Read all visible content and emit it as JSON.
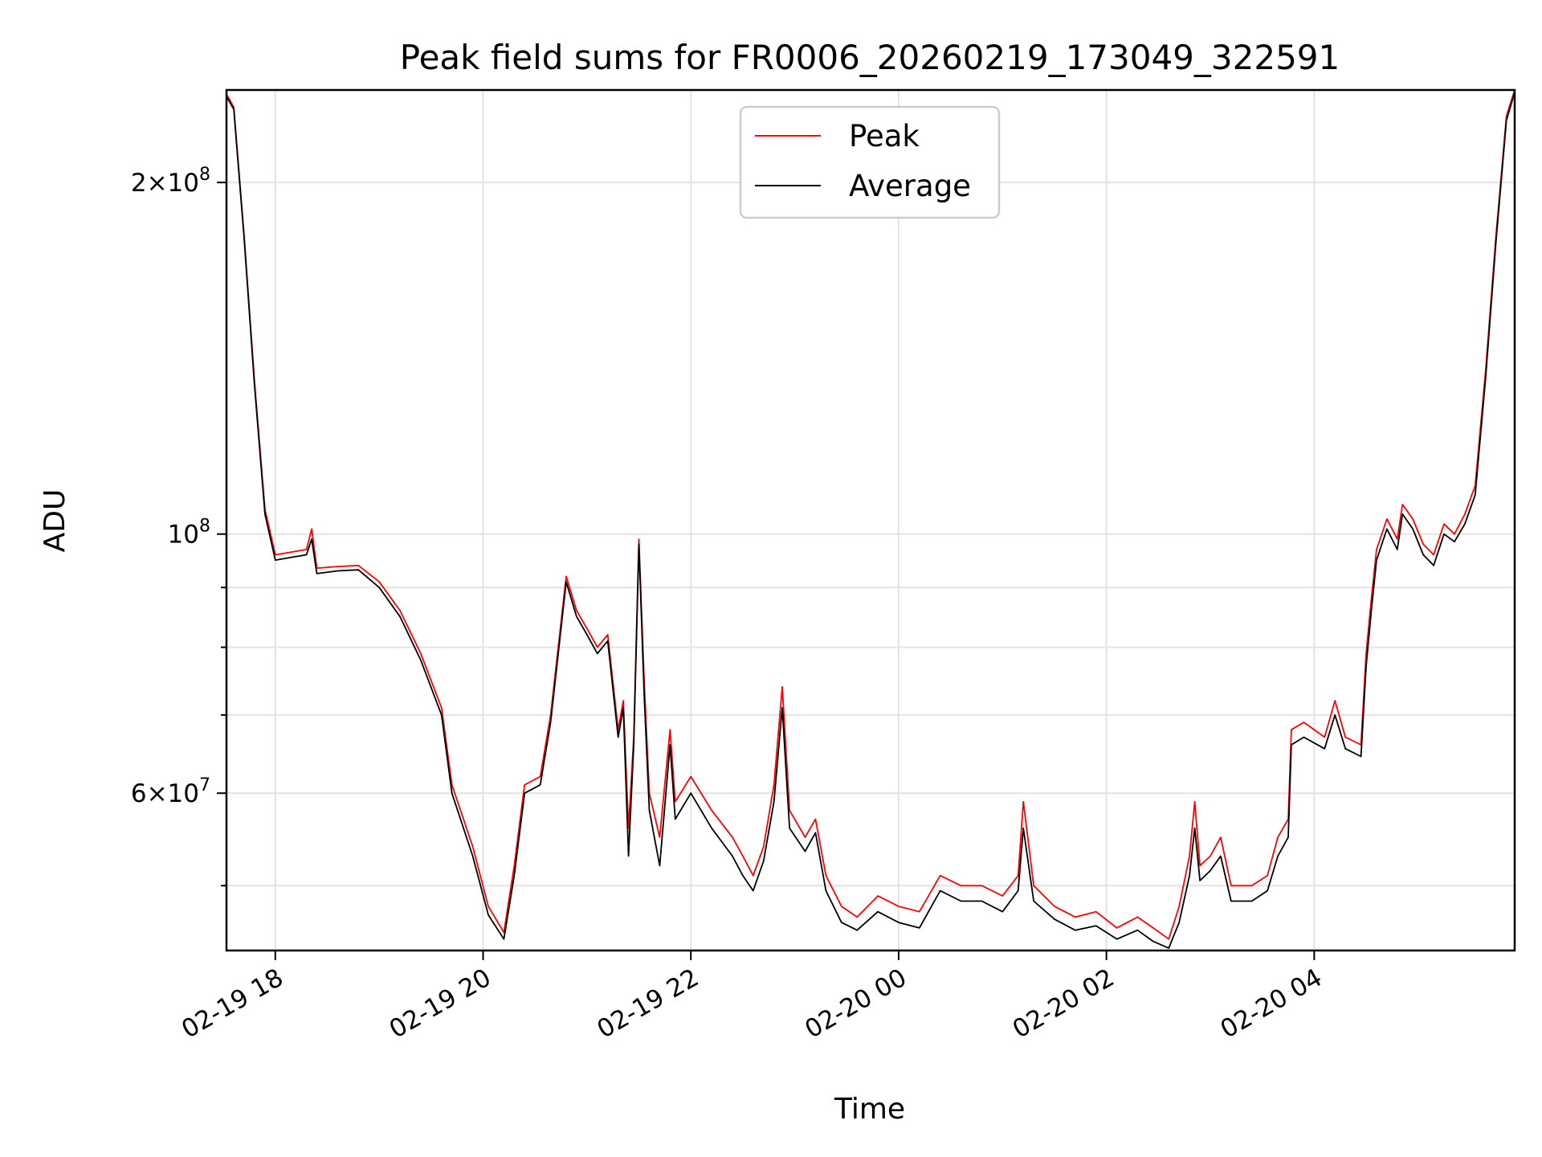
{
  "chart_data": {
    "type": "line",
    "title": "Peak field sums for FR0006_20260219_173049_322591",
    "xlabel": "Time",
    "ylabel": "ADU",
    "yscale": "log",
    "grid": true,
    "legend_position": "top-center",
    "xlim": [
      17.53,
      29.93
    ],
    "ylim": [
      44000000,
      240000000
    ],
    "x_ticks": [
      {
        "value": 18,
        "label": "02-19 18"
      },
      {
        "value": 20,
        "label": "02-19 20"
      },
      {
        "value": 22,
        "label": "02-19 22"
      },
      {
        "value": 24,
        "label": "02-20 00"
      },
      {
        "value": 26,
        "label": "02-20 02"
      },
      {
        "value": 28,
        "label": "02-20 04"
      }
    ],
    "y_ticks_major": [
      {
        "value": 200000000,
        "base": "2×10",
        "exp": "8"
      },
      {
        "value": 100000000,
        "base": "10",
        "exp": "8"
      },
      {
        "value": 60000000,
        "base": "6×10",
        "exp": "7"
      }
    ],
    "y_ticks_minor": [
      50000000,
      70000000,
      80000000,
      90000000
    ],
    "colors": {
      "peak": "#ff0000",
      "average": "#000000"
    },
    "series": [
      {
        "name": "Peak",
        "color": "#ff0000",
        "points": [
          [
            17.53,
            238000000
          ],
          [
            17.6,
            232000000
          ],
          [
            17.7,
            180000000
          ],
          [
            17.8,
            135000000
          ],
          [
            17.9,
            105000000
          ],
          [
            18.0,
            96000000
          ],
          [
            18.15,
            96500000
          ],
          [
            18.3,
            97000000
          ],
          [
            18.35,
            101000000
          ],
          [
            18.4,
            93500000
          ],
          [
            18.6,
            93800000
          ],
          [
            18.8,
            94000000
          ],
          [
            19.0,
            91000000
          ],
          [
            19.2,
            86000000
          ],
          [
            19.4,
            79000000
          ],
          [
            19.6,
            71000000
          ],
          [
            19.7,
            61000000
          ],
          [
            19.9,
            54000000
          ],
          [
            20.05,
            48000000
          ],
          [
            20.2,
            45600000
          ],
          [
            20.3,
            52000000
          ],
          [
            20.4,
            61000000
          ],
          [
            20.55,
            62000000
          ],
          [
            20.65,
            70000000
          ],
          [
            20.8,
            92000000
          ],
          [
            20.9,
            86000000
          ],
          [
            21.0,
            83000000
          ],
          [
            21.1,
            80000000
          ],
          [
            21.2,
            82000000
          ],
          [
            21.3,
            68000000
          ],
          [
            21.35,
            72000000
          ],
          [
            21.4,
            56000000
          ],
          [
            21.45,
            67000000
          ],
          [
            21.5,
            99000000
          ],
          [
            21.55,
            75000000
          ],
          [
            21.6,
            60000000
          ],
          [
            21.7,
            55000000
          ],
          [
            21.8,
            68000000
          ],
          [
            21.85,
            59000000
          ],
          [
            22.0,
            62000000
          ],
          [
            22.2,
            58000000
          ],
          [
            22.4,
            55000000
          ],
          [
            22.5,
            53000000
          ],
          [
            22.6,
            51000000
          ],
          [
            22.7,
            54000000
          ],
          [
            22.8,
            61000000
          ],
          [
            22.88,
            74000000
          ],
          [
            22.95,
            58000000
          ],
          [
            23.1,
            55000000
          ],
          [
            23.2,
            57000000
          ],
          [
            23.3,
            51000000
          ],
          [
            23.45,
            48000000
          ],
          [
            23.6,
            47000000
          ],
          [
            23.8,
            49000000
          ],
          [
            24.0,
            48000000
          ],
          [
            24.2,
            47500000
          ],
          [
            24.4,
            51000000
          ],
          [
            24.6,
            50000000
          ],
          [
            24.8,
            50000000
          ],
          [
            25.0,
            49000000
          ],
          [
            25.15,
            51000000
          ],
          [
            25.2,
            59000000
          ],
          [
            25.3,
            50000000
          ],
          [
            25.5,
            48000000
          ],
          [
            25.7,
            47000000
          ],
          [
            25.9,
            47500000
          ],
          [
            26.1,
            46000000
          ],
          [
            26.3,
            47000000
          ],
          [
            26.45,
            46000000
          ],
          [
            26.6,
            45000000
          ],
          [
            26.7,
            48000000
          ],
          [
            26.8,
            53000000
          ],
          [
            26.85,
            59000000
          ],
          [
            26.9,
            52000000
          ],
          [
            27.0,
            53000000
          ],
          [
            27.1,
            55000000
          ],
          [
            27.2,
            50000000
          ],
          [
            27.4,
            50000000
          ],
          [
            27.55,
            51000000
          ],
          [
            27.65,
            55000000
          ],
          [
            27.75,
            57000000
          ],
          [
            27.78,
            68000000
          ],
          [
            27.9,
            69000000
          ],
          [
            28.1,
            67000000
          ],
          [
            28.2,
            72000000
          ],
          [
            28.3,
            67000000
          ],
          [
            28.45,
            66000000
          ],
          [
            28.5,
            79000000
          ],
          [
            28.55,
            88000000
          ],
          [
            28.6,
            97000000
          ],
          [
            28.7,
            103000000
          ],
          [
            28.8,
            99000000
          ],
          [
            28.85,
            106000000
          ],
          [
            28.95,
            103000000
          ],
          [
            29.05,
            98000000
          ],
          [
            29.15,
            96000000
          ],
          [
            29.25,
            102000000
          ],
          [
            29.35,
            100000000
          ],
          [
            29.45,
            104000000
          ],
          [
            29.55,
            110000000
          ],
          [
            29.65,
            138000000
          ],
          [
            29.75,
            180000000
          ],
          [
            29.85,
            228000000
          ],
          [
            29.93,
            240000000
          ]
        ]
      },
      {
        "name": "Average",
        "color": "#000000",
        "points": [
          [
            17.53,
            237000000
          ],
          [
            17.6,
            231000000
          ],
          [
            17.7,
            179000000
          ],
          [
            17.8,
            134000000
          ],
          [
            17.9,
            104000000
          ],
          [
            18.0,
            95000000
          ],
          [
            18.15,
            95500000
          ],
          [
            18.3,
            96000000
          ],
          [
            18.35,
            99000000
          ],
          [
            18.4,
            92500000
          ],
          [
            18.6,
            93000000
          ],
          [
            18.8,
            93200000
          ],
          [
            19.0,
            90000000
          ],
          [
            19.2,
            85000000
          ],
          [
            19.4,
            78000000
          ],
          [
            19.6,
            70000000
          ],
          [
            19.7,
            60000000
          ],
          [
            19.9,
            53000000
          ],
          [
            20.05,
            47200000
          ],
          [
            20.2,
            45000000
          ],
          [
            20.3,
            51000000
          ],
          [
            20.4,
            60000000
          ],
          [
            20.55,
            61000000
          ],
          [
            20.65,
            69000000
          ],
          [
            20.8,
            91000000
          ],
          [
            20.9,
            85000000
          ],
          [
            21.0,
            82000000
          ],
          [
            21.1,
            79000000
          ],
          [
            21.2,
            81000000
          ],
          [
            21.3,
            67000000
          ],
          [
            21.35,
            71000000
          ],
          [
            21.4,
            53000000
          ],
          [
            21.45,
            66000000
          ],
          [
            21.5,
            98000000
          ],
          [
            21.55,
            73000000
          ],
          [
            21.6,
            58000000
          ],
          [
            21.7,
            52000000
          ],
          [
            21.8,
            66000000
          ],
          [
            21.85,
            57000000
          ],
          [
            22.0,
            60000000
          ],
          [
            22.2,
            56000000
          ],
          [
            22.4,
            53000000
          ],
          [
            22.5,
            51000000
          ],
          [
            22.6,
            49500000
          ],
          [
            22.7,
            52500000
          ],
          [
            22.8,
            59000000
          ],
          [
            22.88,
            71000000
          ],
          [
            22.95,
            56000000
          ],
          [
            23.1,
            53500000
          ],
          [
            23.2,
            55500000
          ],
          [
            23.3,
            49500000
          ],
          [
            23.45,
            46500000
          ],
          [
            23.6,
            45800000
          ],
          [
            23.8,
            47500000
          ],
          [
            24.0,
            46500000
          ],
          [
            24.2,
            46000000
          ],
          [
            24.4,
            49500000
          ],
          [
            24.6,
            48500000
          ],
          [
            24.8,
            48500000
          ],
          [
            25.0,
            47500000
          ],
          [
            25.15,
            49500000
          ],
          [
            25.2,
            56000000
          ],
          [
            25.3,
            48500000
          ],
          [
            25.5,
            46800000
          ],
          [
            25.7,
            45800000
          ],
          [
            25.9,
            46200000
          ],
          [
            26.1,
            45000000
          ],
          [
            26.3,
            45800000
          ],
          [
            26.45,
            44800000
          ],
          [
            26.6,
            44200000
          ],
          [
            26.7,
            46500000
          ],
          [
            26.8,
            51000000
          ],
          [
            26.85,
            56000000
          ],
          [
            26.9,
            50500000
          ],
          [
            27.0,
            51500000
          ],
          [
            27.1,
            53000000
          ],
          [
            27.2,
            48500000
          ],
          [
            27.4,
            48500000
          ],
          [
            27.55,
            49500000
          ],
          [
            27.65,
            53000000
          ],
          [
            27.75,
            55000000
          ],
          [
            27.78,
            66000000
          ],
          [
            27.9,
            67000000
          ],
          [
            28.1,
            65500000
          ],
          [
            28.2,
            70000000
          ],
          [
            28.3,
            65500000
          ],
          [
            28.45,
            64500000
          ],
          [
            28.5,
            77000000
          ],
          [
            28.55,
            86000000
          ],
          [
            28.6,
            95000000
          ],
          [
            28.7,
            101000000
          ],
          [
            28.8,
            97000000
          ],
          [
            28.85,
            104000000
          ],
          [
            28.95,
            101000000
          ],
          [
            29.05,
            96000000
          ],
          [
            29.15,
            94000000
          ],
          [
            29.25,
            100000000
          ],
          [
            29.35,
            98500000
          ],
          [
            29.45,
            102000000
          ],
          [
            29.55,
            108000000
          ],
          [
            29.65,
            136000000
          ],
          [
            29.75,
            178000000
          ],
          [
            29.85,
            226000000
          ],
          [
            29.93,
            239000000
          ]
        ]
      }
    ]
  }
}
